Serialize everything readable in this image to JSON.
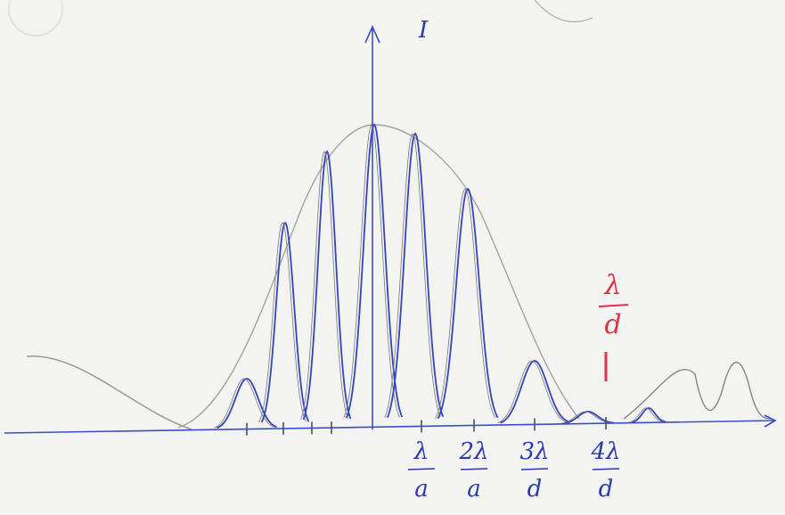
{
  "axis_label": "I",
  "ticks": [
    {
      "numerator": "λ",
      "denominator": "a"
    },
    {
      "numerator": "2λ",
      "denominator": "a"
    },
    {
      "numerator": "3λ",
      "denominator": "d"
    },
    {
      "numerator": "4λ",
      "denominator": "d"
    }
  ],
  "annotation": {
    "numerator": "λ",
    "denominator": "d"
  }
}
